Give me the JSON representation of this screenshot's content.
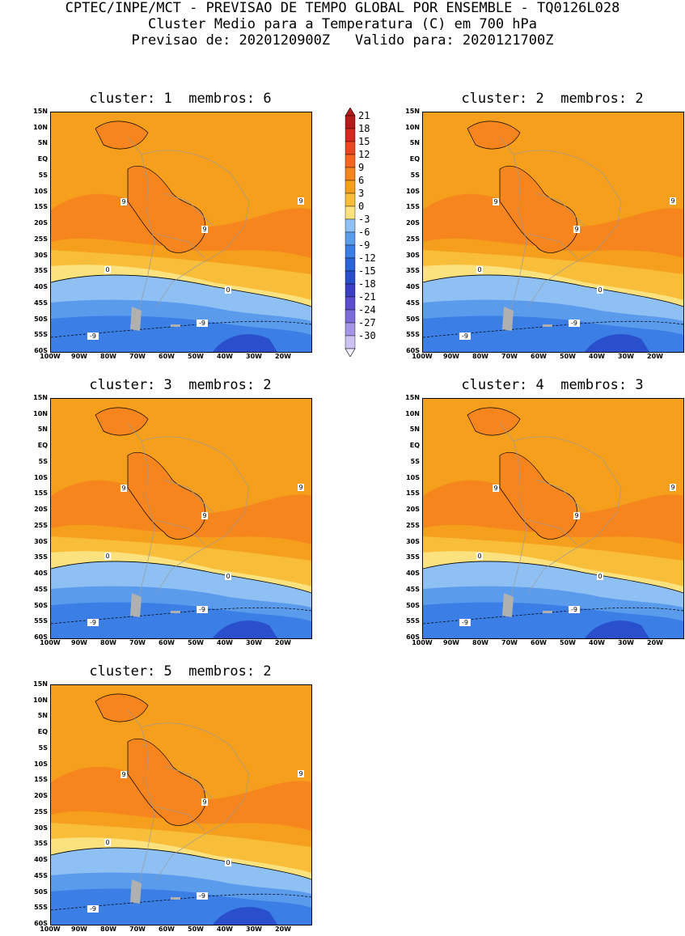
{
  "header": {
    "line1": "CPTEC/INPE/MCT - PREVISAO DE TEMPO GLOBAL POR ENSEMBLE - TQ0126L028",
    "line2": "Cluster Medio para a Temperatura (C) em 700 hPa",
    "line3": "Previsao de: 2020120900Z   Valido para: 2020121700Z"
  },
  "panels": [
    {
      "title": "cluster: 1  membros: 6"
    },
    {
      "title": "cluster: 2  membros: 2"
    },
    {
      "title": "cluster: 3  membros: 2"
    },
    {
      "title": "cluster: 4  membros: 3"
    },
    {
      "title": "cluster: 5  membros: 2"
    }
  ],
  "axes": {
    "lat_labels": [
      "15N",
      "10N",
      "5N",
      "EQ",
      "5S",
      "10S",
      "15S",
      "20S",
      "25S",
      "30S",
      "35S",
      "40S",
      "45S",
      "50S",
      "55S",
      "60S"
    ],
    "lon_labels": [
      "100W",
      "90W",
      "80W",
      "70W",
      "60W",
      "50W",
      "40W",
      "30W",
      "20W"
    ]
  },
  "contour_labels": {
    "warm": "9",
    "zero": "0",
    "cold": "-9"
  },
  "colorbar": {
    "labels": [
      "21",
      "18",
      "15",
      "12",
      "9",
      "6",
      "3",
      "0",
      "-3",
      "-6",
      "-9",
      "-12",
      "-15",
      "-18",
      "-21",
      "-24",
      "-27",
      "-30"
    ],
    "colors": [
      "#b41c1c",
      "#d22a1e",
      "#e8481e",
      "#f4661e",
      "#f5851c",
      "#f59f1c",
      "#f8be3a",
      "#fbe27e",
      "#8ec0f4",
      "#5a9bec",
      "#3a7ee6",
      "#2b63d8",
      "#2a4fcc",
      "#3a3fc6",
      "#5b4fd0",
      "#7d6ddc",
      "#a595e6",
      "#cdc3f2"
    ]
  }
}
